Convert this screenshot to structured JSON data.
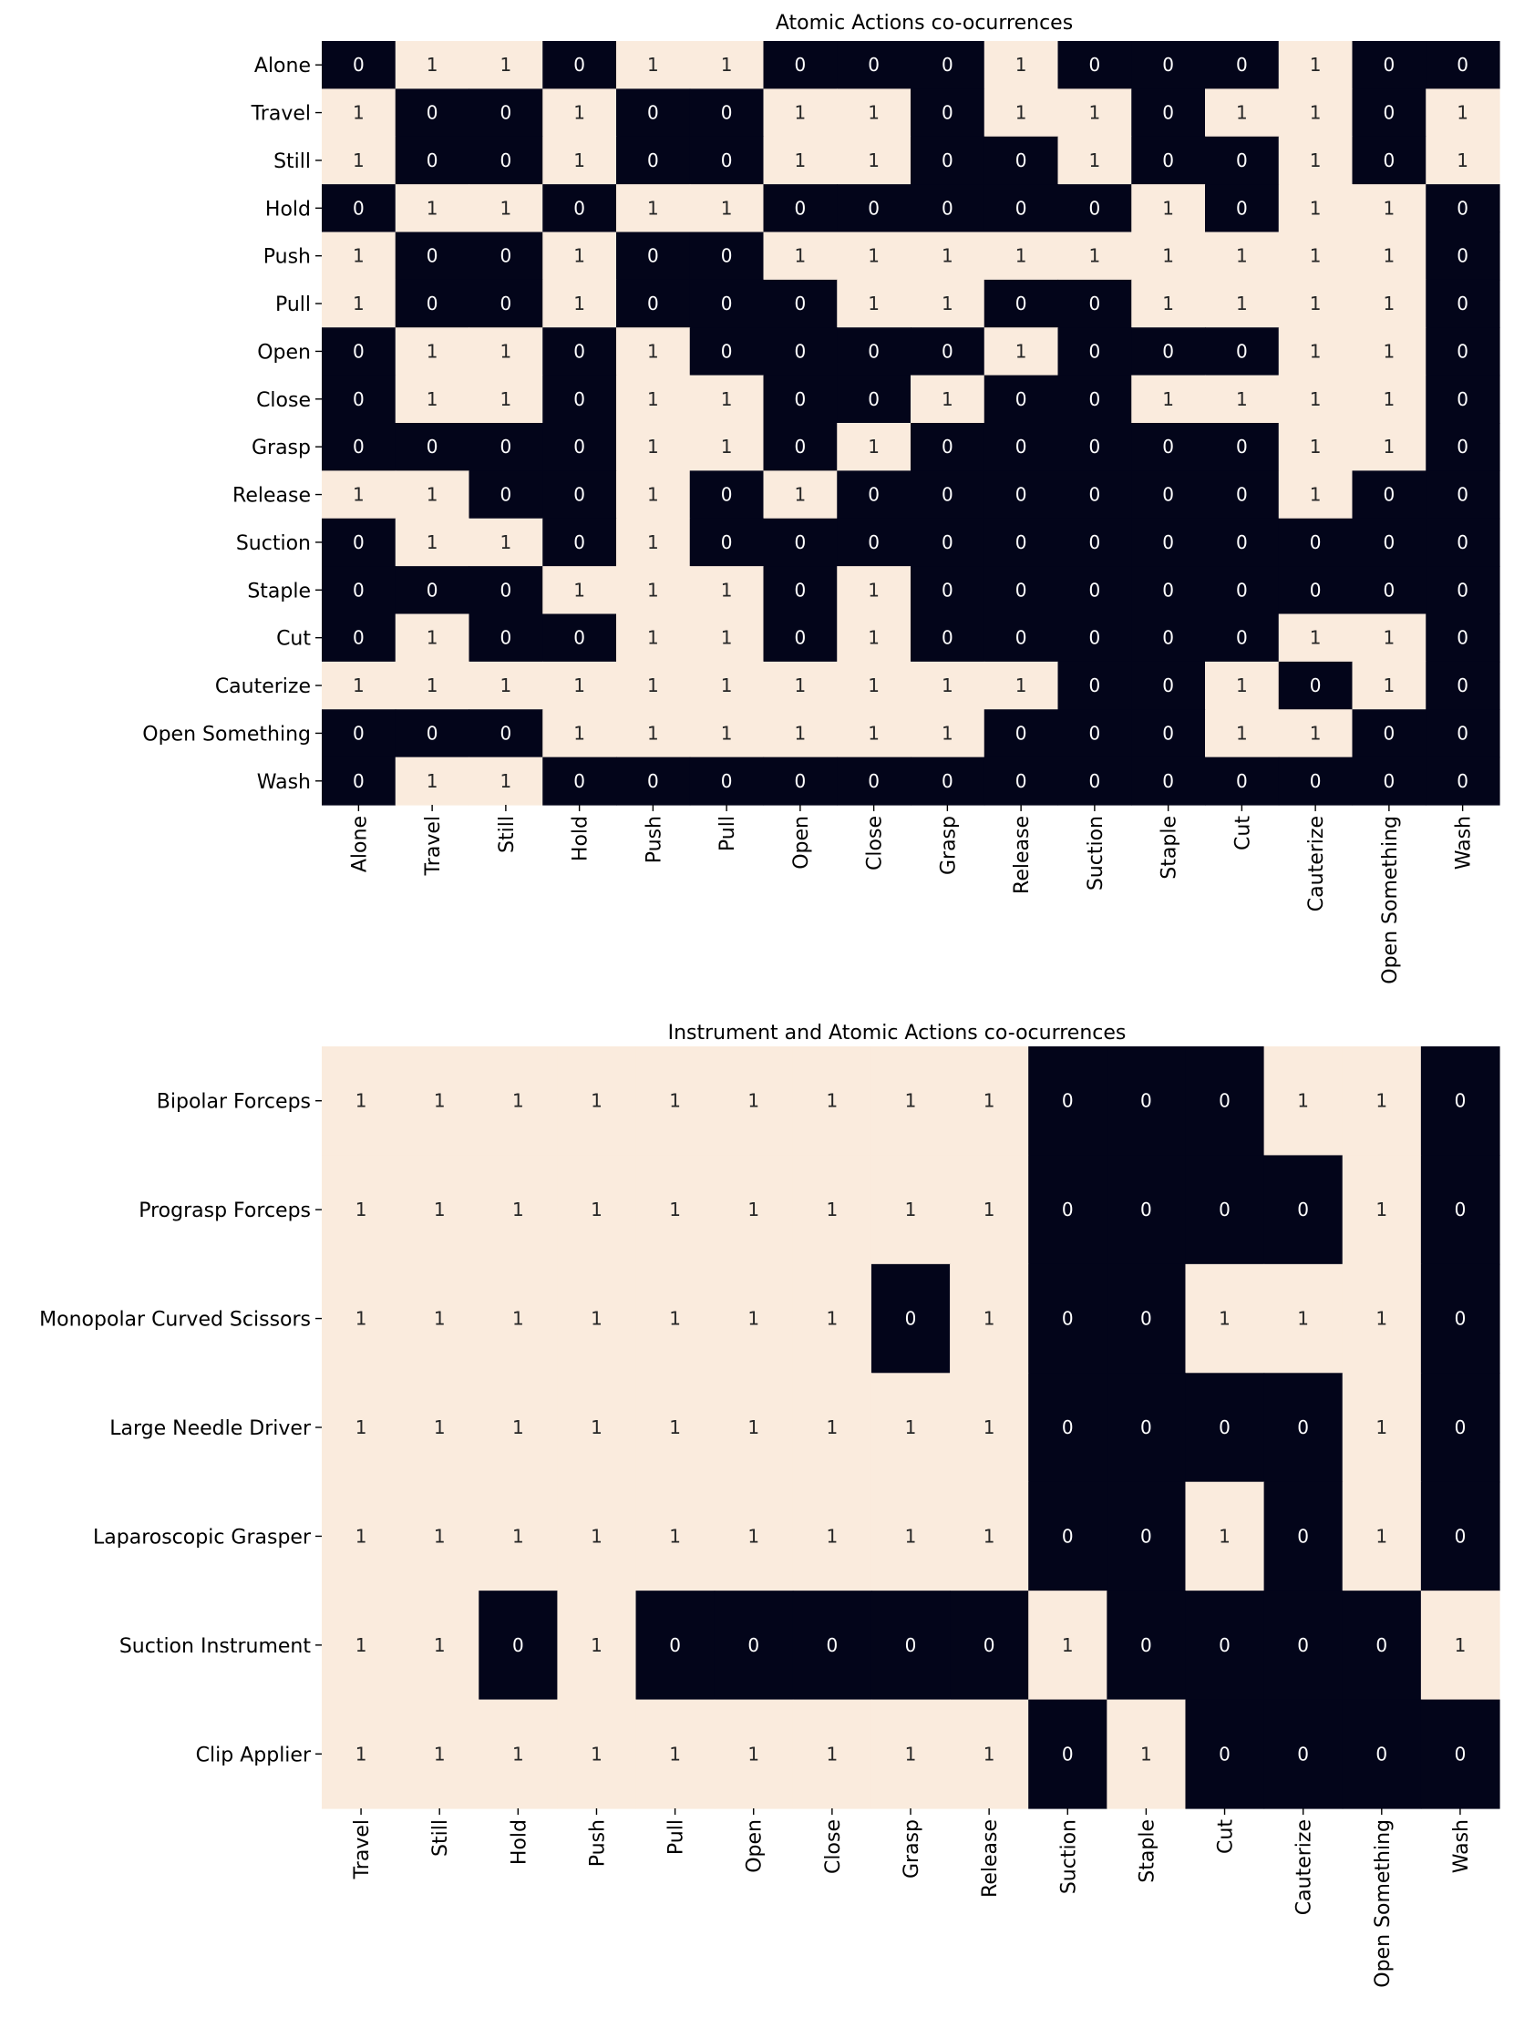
{
  "colors": {
    "one": "#faebdd",
    "zero": "#03051a",
    "text_on_one": "#262626",
    "text_on_zero": "#ffffff"
  },
  "chart_data": [
    {
      "type": "heatmap",
      "title": "Atomic Actions co-ocurrences",
      "rows": [
        "Alone",
        "Travel",
        "Still",
        "Hold",
        "Push",
        "Pull",
        "Open",
        "Close",
        "Grasp",
        "Release",
        "Suction",
        "Staple",
        "Cut",
        "Cauterize",
        "Open Something",
        "Wash"
      ],
      "cols": [
        "Alone",
        "Travel",
        "Still",
        "Hold",
        "Push",
        "Pull",
        "Open",
        "Close",
        "Grasp",
        "Release",
        "Suction",
        "Staple",
        "Cut",
        "Cauterize",
        "Open Something",
        "Wash"
      ],
      "values": [
        [
          0,
          1,
          1,
          0,
          1,
          1,
          0,
          0,
          0,
          1,
          0,
          0,
          0,
          1,
          0,
          0
        ],
        [
          1,
          0,
          0,
          1,
          0,
          0,
          1,
          1,
          0,
          1,
          1,
          0,
          1,
          1,
          0,
          1
        ],
        [
          1,
          0,
          0,
          1,
          0,
          0,
          1,
          1,
          0,
          0,
          1,
          0,
          0,
          1,
          0,
          1
        ],
        [
          0,
          1,
          1,
          0,
          1,
          1,
          0,
          0,
          0,
          0,
          0,
          1,
          0,
          1,
          1,
          0
        ],
        [
          1,
          0,
          0,
          1,
          0,
          0,
          1,
          1,
          1,
          1,
          1,
          1,
          1,
          1,
          1,
          0
        ],
        [
          1,
          0,
          0,
          1,
          0,
          0,
          0,
          1,
          1,
          0,
          0,
          1,
          1,
          1,
          1,
          0
        ],
        [
          0,
          1,
          1,
          0,
          1,
          0,
          0,
          0,
          0,
          1,
          0,
          0,
          0,
          1,
          1,
          0
        ],
        [
          0,
          1,
          1,
          0,
          1,
          1,
          0,
          0,
          1,
          0,
          0,
          1,
          1,
          1,
          1,
          0
        ],
        [
          0,
          0,
          0,
          0,
          1,
          1,
          0,
          1,
          0,
          0,
          0,
          0,
          0,
          1,
          1,
          0
        ],
        [
          1,
          1,
          0,
          0,
          1,
          0,
          1,
          0,
          0,
          0,
          0,
          0,
          0,
          1,
          0,
          0
        ],
        [
          0,
          1,
          1,
          0,
          1,
          0,
          0,
          0,
          0,
          0,
          0,
          0,
          0,
          0,
          0,
          0
        ],
        [
          0,
          0,
          0,
          1,
          1,
          1,
          0,
          1,
          0,
          0,
          0,
          0,
          0,
          0,
          0,
          0
        ],
        [
          0,
          1,
          0,
          0,
          1,
          1,
          0,
          1,
          0,
          0,
          0,
          0,
          0,
          1,
          1,
          0
        ],
        [
          1,
          1,
          1,
          1,
          1,
          1,
          1,
          1,
          1,
          1,
          0,
          0,
          1,
          0,
          1,
          0
        ],
        [
          0,
          0,
          0,
          1,
          1,
          1,
          1,
          1,
          1,
          0,
          0,
          0,
          1,
          1,
          0,
          0
        ],
        [
          0,
          1,
          1,
          0,
          0,
          0,
          0,
          0,
          0,
          0,
          0,
          0,
          0,
          0,
          0,
          0
        ]
      ]
    },
    {
      "type": "heatmap",
      "title": "Instrument and Atomic Actions co-ocurrences",
      "rows": [
        "Bipolar Forceps",
        "Prograsp Forceps",
        "Monopolar Curved Scissors",
        "Large Needle Driver",
        "Laparoscopic Grasper",
        "Suction Instrument",
        "Clip Applier"
      ],
      "cols": [
        "Travel",
        "Still",
        "Hold",
        "Push",
        "Pull",
        "Open",
        "Close",
        "Grasp",
        "Release",
        "Suction",
        "Staple",
        "Cut",
        "Cauterize",
        "Open Something",
        "Wash"
      ],
      "values": [
        [
          1,
          1,
          1,
          1,
          1,
          1,
          1,
          1,
          1,
          0,
          0,
          0,
          1,
          1,
          0
        ],
        [
          1,
          1,
          1,
          1,
          1,
          1,
          1,
          1,
          1,
          0,
          0,
          0,
          0,
          1,
          0
        ],
        [
          1,
          1,
          1,
          1,
          1,
          1,
          1,
          0,
          1,
          0,
          0,
          1,
          1,
          1,
          0
        ],
        [
          1,
          1,
          1,
          1,
          1,
          1,
          1,
          1,
          1,
          0,
          0,
          0,
          0,
          1,
          0
        ],
        [
          1,
          1,
          1,
          1,
          1,
          1,
          1,
          1,
          1,
          0,
          0,
          1,
          0,
          1,
          0
        ],
        [
          1,
          1,
          0,
          1,
          0,
          0,
          0,
          0,
          0,
          1,
          0,
          0,
          0,
          0,
          1
        ],
        [
          1,
          1,
          1,
          1,
          1,
          1,
          1,
          1,
          1,
          0,
          1,
          0,
          0,
          0,
          0
        ]
      ]
    }
  ]
}
